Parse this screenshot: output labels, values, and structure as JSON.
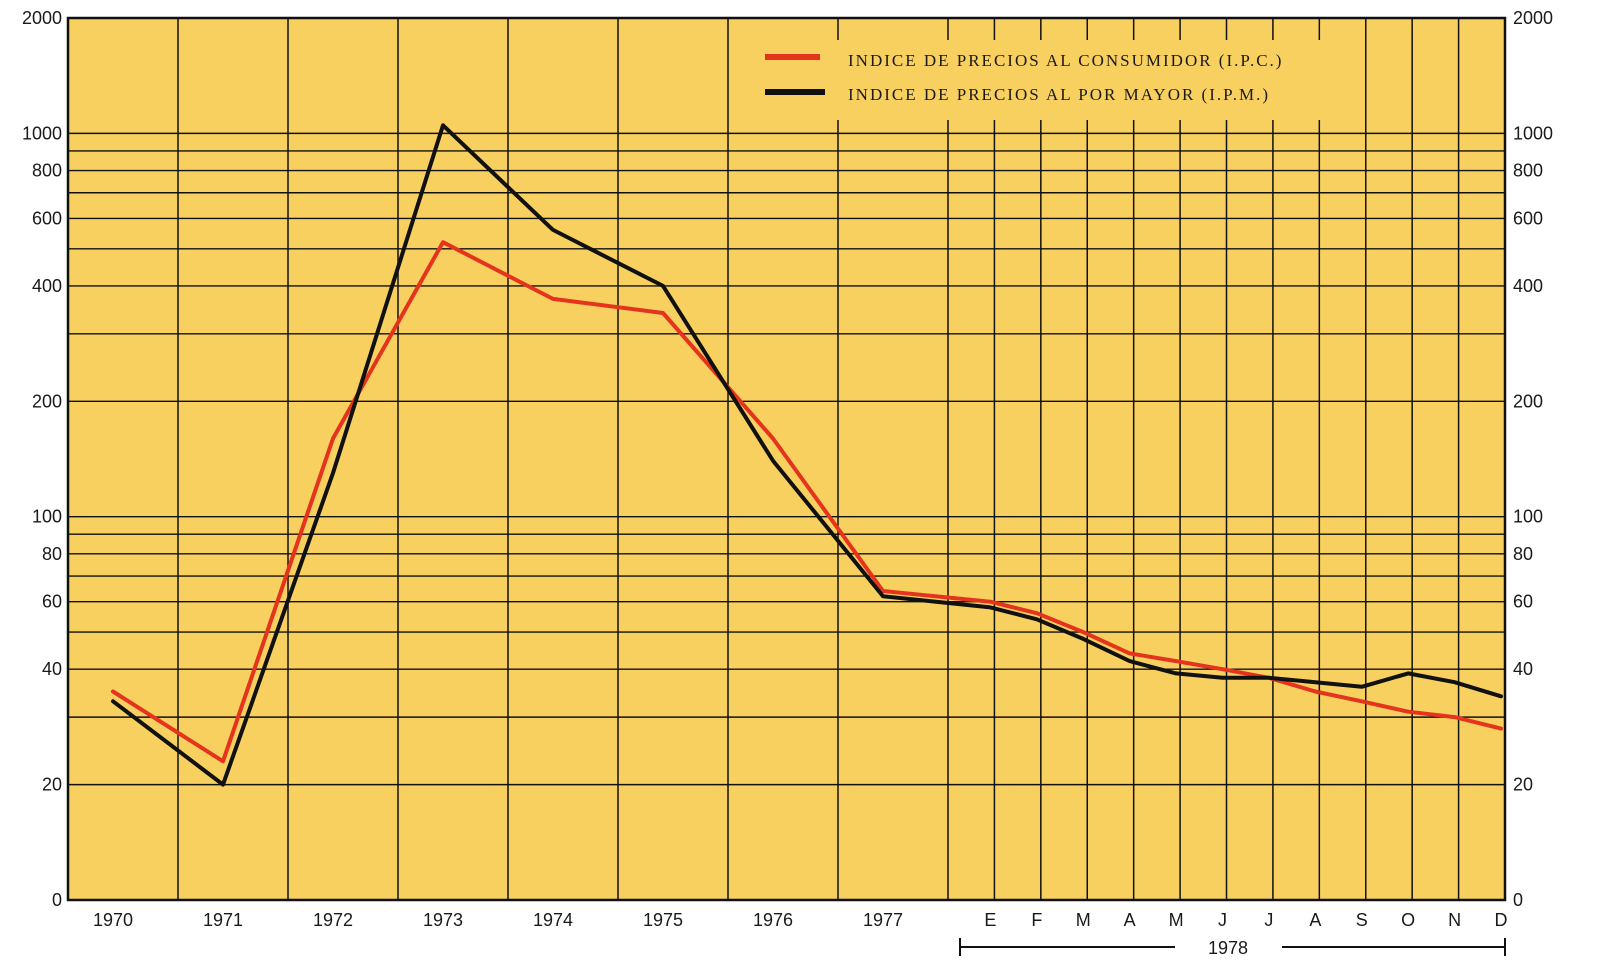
{
  "chart_data": {
    "type": "line",
    "title": "",
    "xlabel": "",
    "ylabel": "",
    "y_scale": "log",
    "grid": true,
    "legend_position": "top-right",
    "background_color": "#f8d060",
    "y_tick_labels": [
      "0",
      "20",
      "40",
      "60",
      "80",
      "100",
      "200",
      "400",
      "600",
      "800",
      "1000",
      "2000"
    ],
    "year_labels": [
      "1970",
      "1971",
      "1972",
      "1973",
      "1974",
      "1975",
      "1976",
      "1977"
    ],
    "month_labels": [
      "E",
      "F",
      "M",
      "A",
      "M",
      "J",
      "J",
      "A",
      "S",
      "O",
      "N",
      "D"
    ],
    "year_group_label": "1978",
    "series": [
      {
        "name": "INDICE DE PRECIOS AL CONSUMIDOR (I.P.C.)",
        "color": "#e5341d",
        "points": [
          [
            "1970",
            35
          ],
          [
            "1971",
            23
          ],
          [
            "1972",
            160
          ],
          [
            "1973",
            520
          ],
          [
            "1974",
            370
          ],
          [
            "1975",
            340
          ],
          [
            "1976",
            160
          ],
          [
            "1977",
            64
          ],
          [
            "E",
            60
          ],
          [
            "F",
            56
          ],
          [
            "M",
            50
          ],
          [
            "A",
            44
          ],
          [
            "M",
            42
          ],
          [
            "J",
            40
          ],
          [
            "J",
            38
          ],
          [
            "A",
            35
          ],
          [
            "S",
            33
          ],
          [
            "O",
            31
          ],
          [
            "N",
            30
          ],
          [
            "D",
            28
          ]
        ]
      },
      {
        "name": "INDICE DE PRECIOS AL POR MAYOR (I.P.M.)",
        "color": "#111111",
        "points": [
          [
            "1970",
            33
          ],
          [
            "1971",
            20
          ],
          [
            "1972",
            130
          ],
          [
            "1973",
            1050
          ],
          [
            "1974",
            560
          ],
          [
            "1975",
            400
          ],
          [
            "1976",
            140
          ],
          [
            "1977",
            62
          ],
          [
            "E",
            58
          ],
          [
            "F",
            54
          ],
          [
            "M",
            48
          ],
          [
            "A",
            42
          ],
          [
            "M",
            39
          ],
          [
            "J",
            38
          ],
          [
            "J",
            38
          ],
          [
            "A",
            37
          ],
          [
            "S",
            36
          ],
          [
            "O",
            39
          ],
          [
            "N",
            37
          ],
          [
            "D",
            34
          ]
        ]
      }
    ]
  }
}
